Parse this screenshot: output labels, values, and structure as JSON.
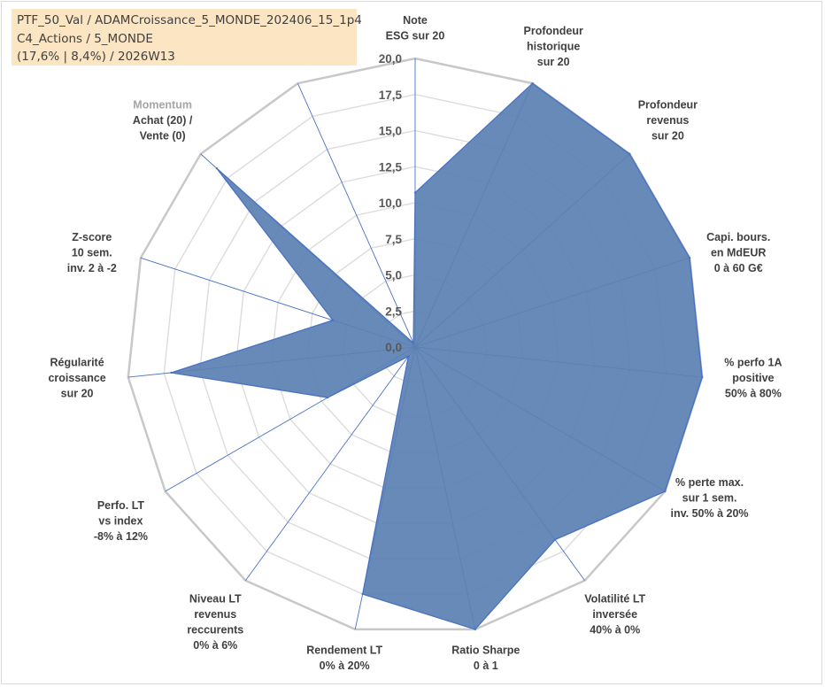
{
  "header": {
    "line1": "PTF_50_Val / ADAMCroissance_5_MONDE_202406_15_1p4",
    "line2": "C4_Actions / 5_MONDE",
    "line3": "(17,6% | 8,4%) / 2026W13"
  },
  "chart_data": {
    "type": "radar",
    "rmin": 0,
    "rmax": 20,
    "ticks": [
      "0,0",
      "2,5",
      "5,0",
      "7,5",
      "10,0",
      "12,5",
      "15,0",
      "17,5",
      "20,0"
    ],
    "tick_values": [
      0,
      2.5,
      5,
      7.5,
      10,
      12.5,
      15,
      17.5,
      20
    ],
    "series": [
      {
        "name": "PTF_50_Val",
        "color": "#5b81b3",
        "stroke": "#4a72c4",
        "values": [
          10.7,
          20,
          20,
          20,
          20,
          20,
          16.5,
          20,
          17.5,
          0.8,
          7.0,
          17.0,
          6.0,
          18.5,
          0.3
        ]
      }
    ],
    "axes": [
      {
        "label": [
          "Note",
          "ESG sur 20"
        ]
      },
      {
        "label": [
          "Profondeur",
          "historique",
          "sur 20"
        ]
      },
      {
        "label": [
          "Profondeur",
          "revenus",
          "sur 20"
        ]
      },
      {
        "label": [
          "Capi. bours.",
          "en MdEUR",
          "0 à 60 G€"
        ]
      },
      {
        "label": [
          "% perfo 1A",
          "positive",
          "50% à 80%"
        ]
      },
      {
        "label": [
          "% perte max.",
          "sur 1 sem.",
          "inv. 50% à 20%"
        ]
      },
      {
        "label": [
          "Volatilité LT",
          "inversée",
          "40% à 0%"
        ]
      },
      {
        "label": [
          "Ratio Sharpe",
          "0 à 1"
        ]
      },
      {
        "label": [
          "Rendement LT",
          "0% à 20%"
        ]
      },
      {
        "label": [
          "Niveau LT",
          "revenus",
          "reccurents",
          "0% à 6%"
        ]
      },
      {
        "label": [
          "Perfo. LT",
          "vs index",
          "-8% à 12%"
        ]
      },
      {
        "label": [
          "Régularité",
          "croissance",
          "sur 20"
        ]
      },
      {
        "label": [
          "Z-score",
          "10 sem.",
          "inv. 2 à -2"
        ]
      },
      {
        "label": [
          "Momentum",
          "Achat (20) /",
          "Vente (0)"
        ]
      },
      {
        "label": []
      }
    ]
  }
}
